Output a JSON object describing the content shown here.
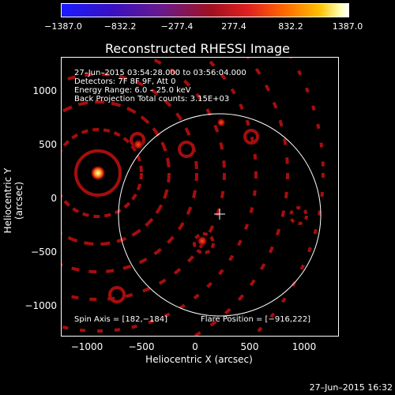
{
  "colorbar": {
    "ticks": [
      "−1387.0",
      "−832.2",
      "−277.4",
      "277.4",
      "832.2",
      "1387.0"
    ]
  },
  "plot": {
    "title": "Reconstructed RHESSI Image",
    "info_lines": [
      "27–Jun–2015 03:54:28.000 to 03:56:04.000",
      "Detectors: 7F 8F 9F, Att 0",
      "Energy Range: 6.0 – 25.0 keV",
      "Back Projection    Total counts: 3.15E+03"
    ],
    "spin_axis": "Spin Axis = [182,−184]",
    "flare_position": "Flare Position = [−916,222]",
    "y_axis_label": "Heliocentric Y (arcsec)",
    "x_axis_label": "Heliocentric X (arcsec)",
    "y_ticks": [
      "1000",
      "500",
      "0",
      "−500",
      "−1000"
    ],
    "x_ticks": [
      "−1000",
      "−500",
      "0",
      "500",
      "1000"
    ],
    "sun_center": [
      182,
      -184
    ],
    "solar_radius_arcsec": 950
  },
  "timestamp": "27–Jun–2015 16:32"
}
